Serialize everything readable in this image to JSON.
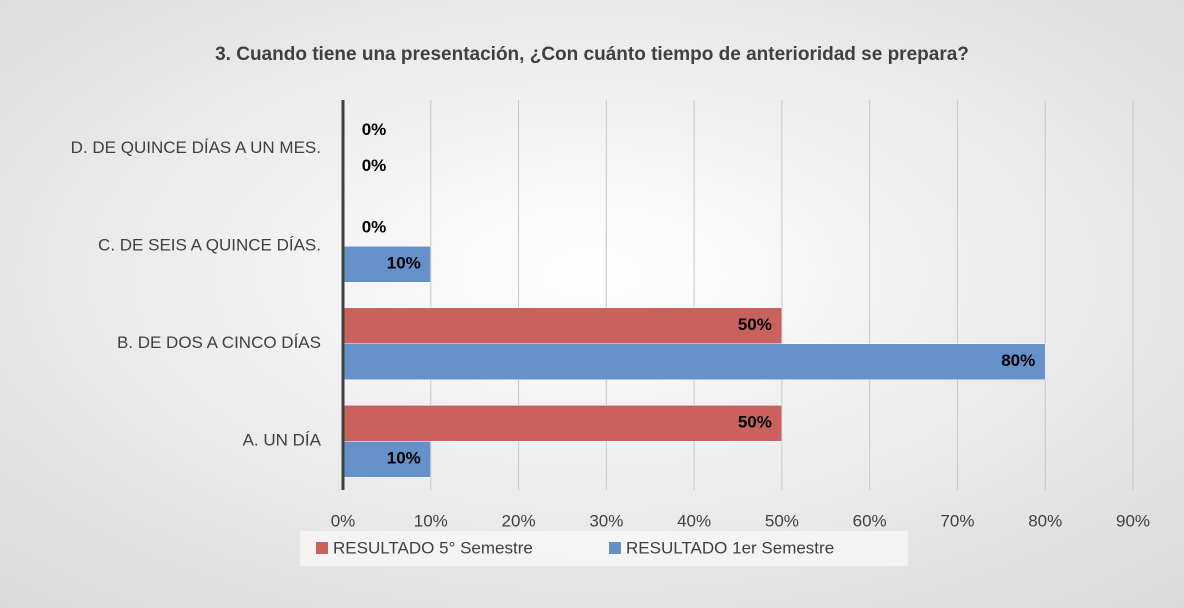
{
  "chart_data": {
    "type": "hbar",
    "title": "3. Cuando tiene una presentación, ¿Con cuánto tiempo de anterioridad se prepara?",
    "categories": [
      "A. UN DÍA",
      "B. DE DOS A CINCO DÍAS",
      "C. DE SEIS A QUINCE DÍAS.",
      "D. DE QUINCE DÍAS A UN MES."
    ],
    "series": [
      {
        "name": "RESULTADO 5° Semestre",
        "color": "#c9625f",
        "values": [
          50,
          50,
          0,
          0
        ],
        "value_labels": [
          "50%",
          "50%",
          "0%",
          "0%"
        ]
      },
      {
        "name": "RESULTADO 1er Semestre",
        "color": "#6590c8",
        "values": [
          10,
          80,
          10,
          0
        ],
        "value_labels": [
          "10%",
          "80%",
          "10%",
          "0%"
        ]
      }
    ],
    "xlim": [
      0,
      90
    ],
    "xticks": [
      {
        "value": 0,
        "label": "0%"
      },
      {
        "value": 10,
        "label": "10%"
      },
      {
        "value": 20,
        "label": "20%"
      },
      {
        "value": 30,
        "label": "30%"
      },
      {
        "value": 40,
        "label": "40%"
      },
      {
        "value": 50,
        "label": "50%"
      },
      {
        "value": 60,
        "label": "60%"
      },
      {
        "value": 70,
        "label": "70%"
      },
      {
        "value": 80,
        "label": "80%"
      },
      {
        "value": 90,
        "label": "90%"
      }
    ],
    "grid": true
  }
}
